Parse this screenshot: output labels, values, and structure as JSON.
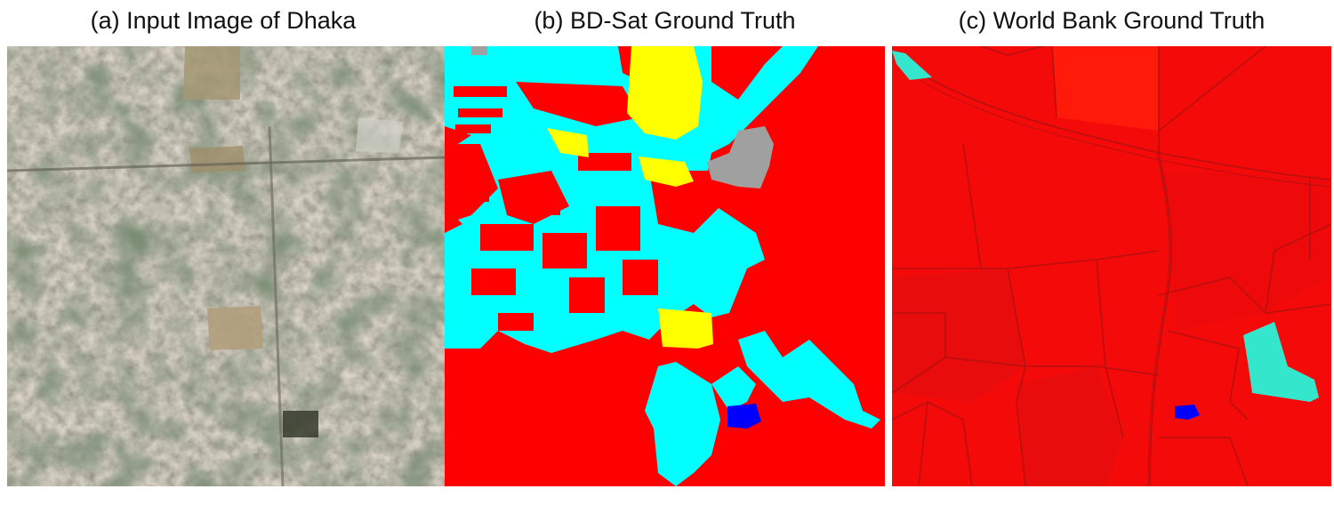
{
  "figure": {
    "panels": [
      {
        "caption": "(a) Input Image of Dhaka",
        "content": "satellite-image"
      },
      {
        "caption": "(b) BD-Sat Ground Truth",
        "content": "segmentation-map"
      },
      {
        "caption": "(c) World Bank Ground Truth",
        "content": "segmentation-map"
      }
    ],
    "class_colors": {
      "built_up": "#ff0000",
      "vegetation": "#00ffff",
      "open_space": "#ffff00",
      "other": "#a0a0a0",
      "water": "#0000ff",
      "world_bank_green": "#33e6cc"
    }
  }
}
